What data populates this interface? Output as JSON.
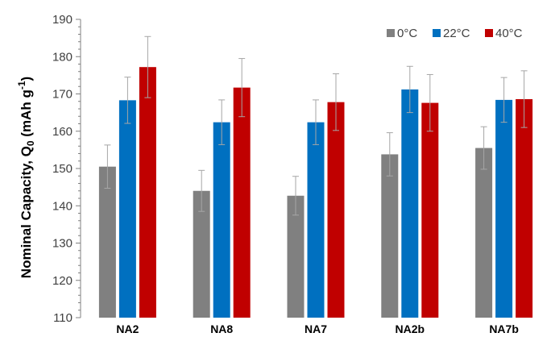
{
  "chart_data": {
    "type": "bar",
    "title": "",
    "xlabel": "",
    "ylabel": {
      "main": "Nominal Capacity, Q",
      "subscript": "0",
      "unit_open": " (mAh g",
      "superscript": "-1",
      "unit_close": ")"
    },
    "categories": [
      "NA2",
      "NA8",
      "NA7",
      "NA2b",
      "NA7b"
    ],
    "ylim": [
      110,
      190
    ],
    "yticks": [
      110,
      120,
      130,
      140,
      150,
      160,
      170,
      180,
      190
    ],
    "grid": false,
    "legend_position": "top-right",
    "series": [
      {
        "name": "0°C",
        "color": "#808080",
        "values": [
          150.5,
          144.0,
          142.7,
          153.8,
          155.5
        ],
        "errors": [
          5.8,
          5.5,
          5.2,
          5.8,
          5.7
        ]
      },
      {
        "name": "22°C",
        "color": "#0070C0",
        "values": [
          168.3,
          162.4,
          162.4,
          171.2,
          168.4
        ],
        "errors": [
          6.2,
          6.0,
          6.0,
          6.2,
          6.0
        ]
      },
      {
        "name": "40°C",
        "color": "#C00000",
        "values": [
          177.2,
          171.7,
          167.8,
          167.6,
          168.6
        ],
        "errors": [
          8.2,
          7.8,
          7.6,
          7.6,
          7.6
        ]
      }
    ]
  }
}
